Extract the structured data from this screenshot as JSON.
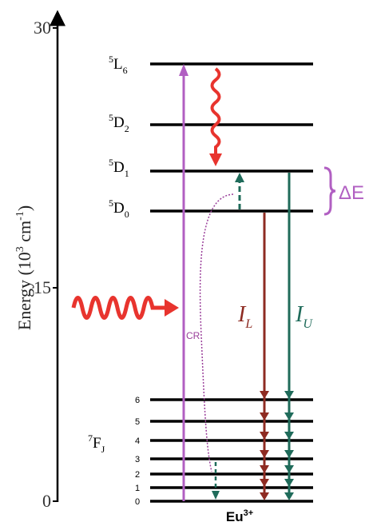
{
  "axis": {
    "label": {
      "text": "Energy (10",
      "sup1": "3",
      "mid": " cm",
      "sup2": "-1",
      "end": ")"
    },
    "ticks": [
      "30",
      "15",
      "0"
    ]
  },
  "excited_levels": [
    {
      "sup": "5",
      "term": "L",
      "sub": "6"
    },
    {
      "sup": "5",
      "term": "D",
      "sub": "2"
    },
    {
      "sup": "5",
      "term": "D",
      "sub": "1"
    },
    {
      "sup": "5",
      "term": "D",
      "sub": "0"
    }
  ],
  "ground_multiplet": {
    "sup": "7",
    "term": "F",
    "sub": "J",
    "j_labels": [
      "6",
      "5",
      "4",
      "3",
      "2",
      "1",
      "0"
    ]
  },
  "annotations": {
    "delta_e": "ΔE",
    "cr": "CR",
    "il": {
      "main": "I",
      "sub": "L"
    },
    "iu": {
      "main": "I",
      "sub": "U"
    }
  },
  "ion": {
    "main": "Eu",
    "sup": "3+"
  }
}
